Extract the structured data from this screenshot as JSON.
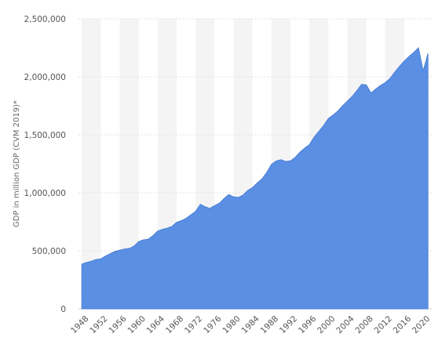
{
  "chart_data": {
    "type": "area",
    "title": "",
    "xlabel": "",
    "ylabel": "GDP in million GDP (CVM 2019)*",
    "ylim": [
      0,
      2500000
    ],
    "yticks": [
      0,
      500000,
      1000000,
      1500000,
      2000000,
      2500000
    ],
    "ytick_labels": [
      "0",
      "500,000",
      "1,000,000",
      "1,500,000",
      "2,000,000",
      "2,500,000"
    ],
    "xticks": [
      1948,
      1952,
      1956,
      1960,
      1964,
      1968,
      1972,
      1976,
      1980,
      1984,
      1988,
      1992,
      1996,
      2000,
      2004,
      2008,
      2012,
      2016,
      2020
    ],
    "grid": "horizontal lines with alternating vertical bands",
    "series": [
      {
        "color": "#5b8fe3",
        "x": [
          1948,
          1949,
          1950,
          1951,
          1952,
          1953,
          1954,
          1955,
          1956,
          1957,
          1958,
          1959,
          1960,
          1961,
          1962,
          1963,
          1964,
          1965,
          1966,
          1967,
          1968,
          1969,
          1970,
          1971,
          1972,
          1973,
          1974,
          1975,
          1976,
          1977,
          1978,
          1979,
          1980,
          1981,
          1982,
          1983,
          1984,
          1985,
          1986,
          1987,
          1988,
          1989,
          1990,
          1991,
          1992,
          1993,
          1994,
          1995,
          1996,
          1997,
          1998,
          1999,
          2000,
          2001,
          2002,
          2003,
          2004,
          2005,
          2006,
          2007,
          2008,
          2009,
          2010,
          2011,
          2012,
          2013,
          2014,
          2015,
          2016,
          2017,
          2018,
          2019,
          2020,
          2021
        ],
        "values": [
          385000,
          400000,
          410000,
          425000,
          430000,
          455000,
          475000,
          495000,
          505000,
          515000,
          520000,
          540000,
          580000,
          595000,
          600000,
          630000,
          670000,
          685000,
          695000,
          710000,
          745000,
          760000,
          780000,
          810000,
          840000,
          900000,
          880000,
          865000,
          890000,
          910000,
          950000,
          985000,
          965000,
          960000,
          980000,
          1020000,
          1045000,
          1085000,
          1120000,
          1175000,
          1245000,
          1275000,
          1285000,
          1270000,
          1275000,
          1305000,
          1350000,
          1385000,
          1415000,
          1480000,
          1530000,
          1580000,
          1640000,
          1670000,
          1705000,
          1750000,
          1790000,
          1830000,
          1880000,
          1935000,
          1930000,
          1860000,
          1895000,
          1925000,
          1950000,
          1985000,
          2040000,
          2090000,
          2135000,
          2175000,
          2210000,
          2250000,
          2050000,
          2200000
        ]
      }
    ]
  }
}
